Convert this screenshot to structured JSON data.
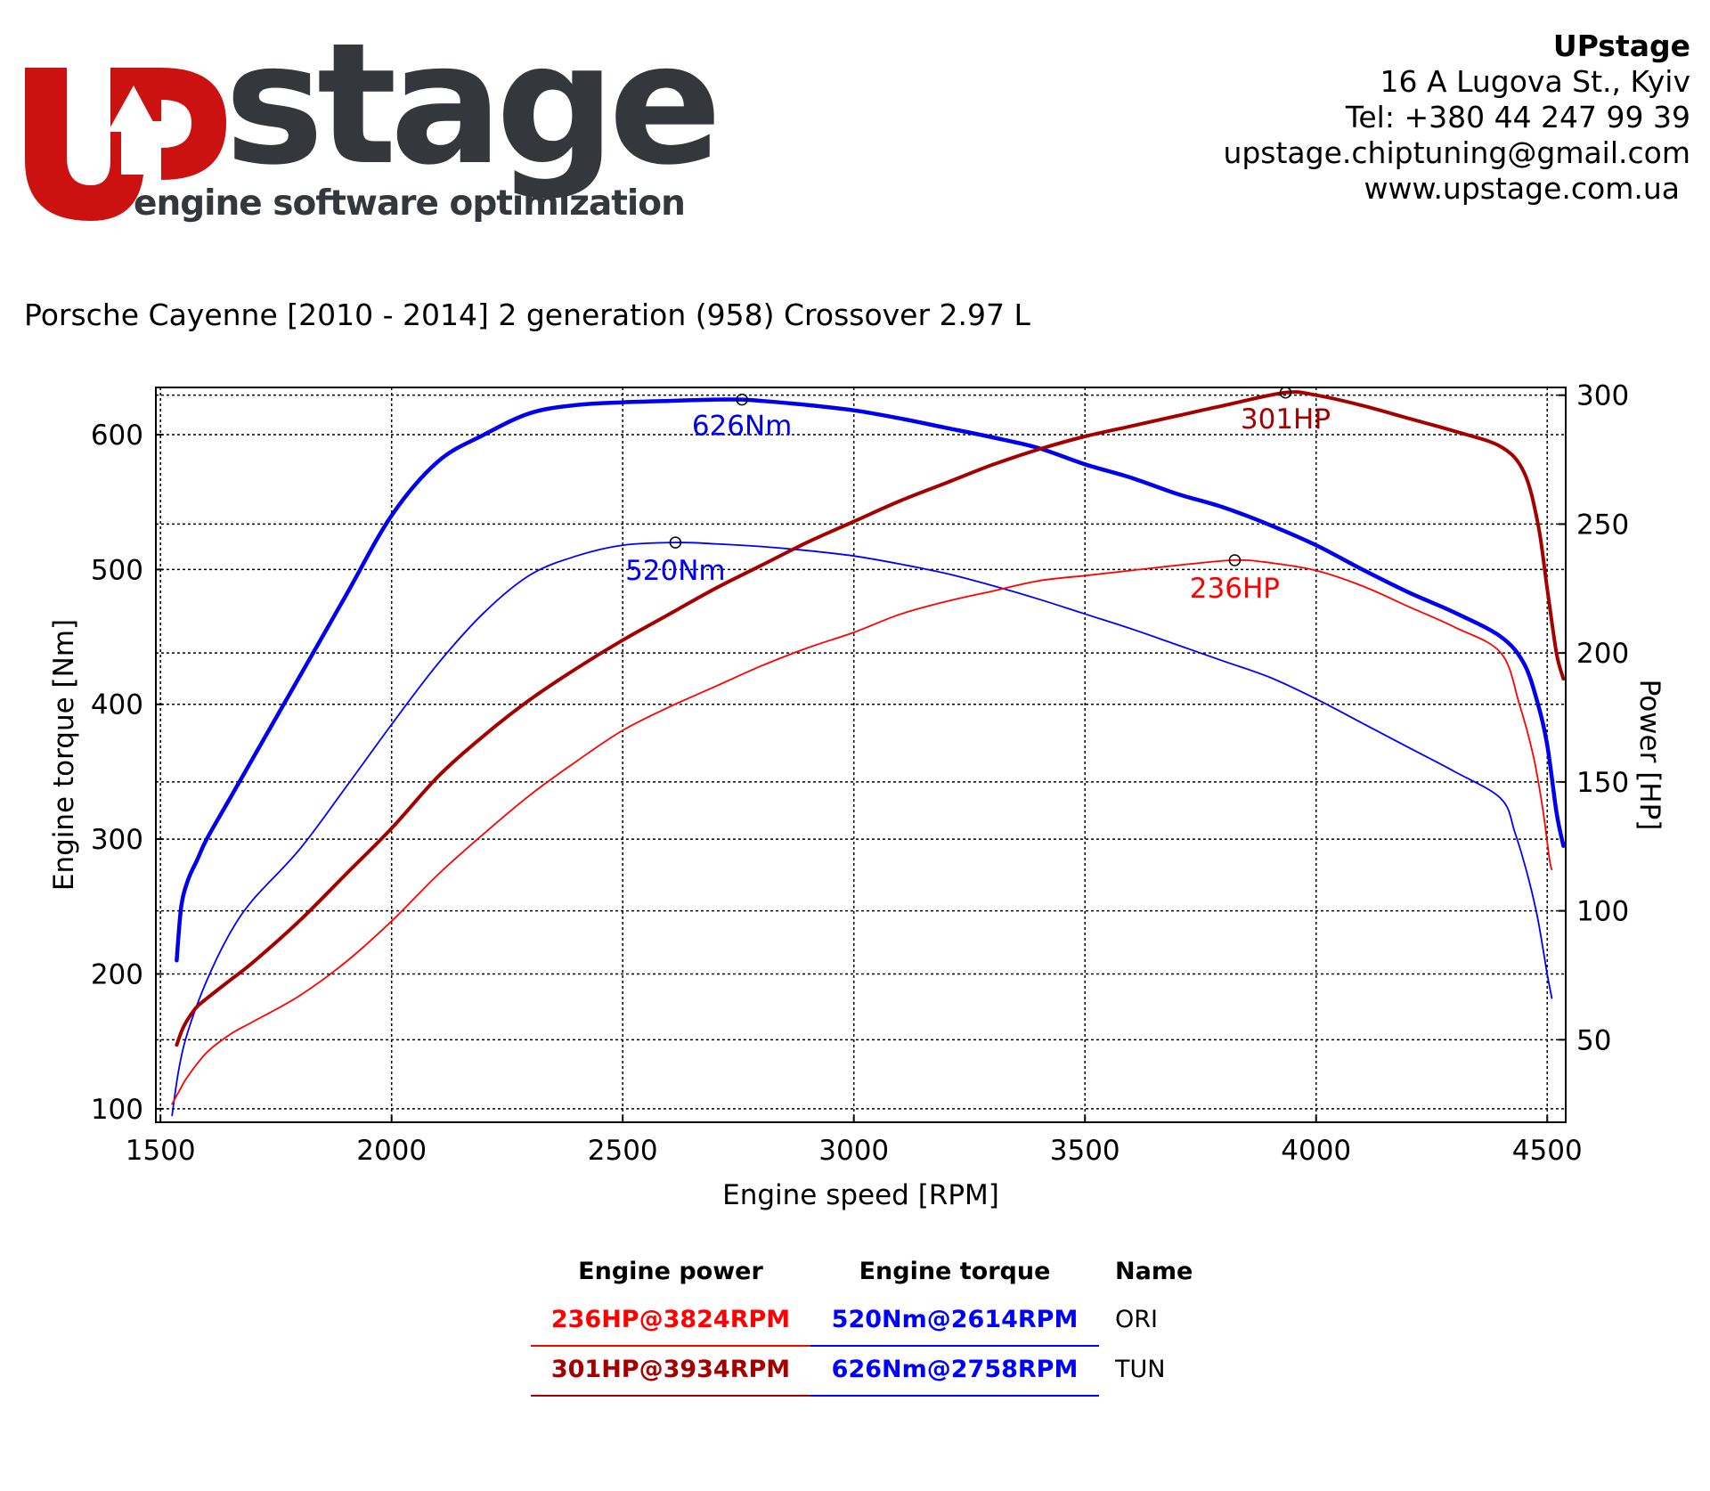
{
  "logo": {
    "word": "stage",
    "tagline": "engine software optimization",
    "colors": {
      "red": "#cc1111",
      "dark": "#34383c"
    }
  },
  "contact": {
    "company": "UPstage",
    "address": "16 A Lugova St., Kyiv",
    "phone": "Tel: +380 44 247 99 39",
    "email": "upstage.chiptuning@gmail.com",
    "web": "www.upstage.com.ua"
  },
  "vehicle": "Porsche Cayenne [2010 - 2014] 2 generation (958) Crossover 2.97 L",
  "colors": {
    "ori_power": "#ff0000",
    "tun_power": "#a50000",
    "ori_torque": "#0000ff",
    "tun_torque": "#0000ee"
  },
  "chart_data": {
    "type": "line",
    "xlabel": "Engine speed [RPM]",
    "ylabel_left": "Engine torque [Nm]",
    "ylabel_right": "Power [HP]",
    "xlim": [
      1490,
      4540
    ],
    "ylim_left": [
      90,
      635
    ],
    "ylim_right": [
      18,
      303
    ],
    "xticks": [
      1500,
      2000,
      2500,
      3000,
      3500,
      4000,
      4500
    ],
    "yticks_left": [
      100,
      200,
      300,
      400,
      500,
      600
    ],
    "yticks_right": [
      50,
      100,
      150,
      200,
      250,
      300
    ],
    "grid": true,
    "series": [
      {
        "key": "tun_torque",
        "axis": "left",
        "label": "626Nm",
        "peak": [
          2758,
          626
        ],
        "x": [
          1535,
          1545,
          1560,
          1580,
          1600,
          1650,
          1700,
          1800,
          1900,
          2000,
          2100,
          2200,
          2300,
          2400,
          2500,
          2600,
          2700,
          2758,
          2800,
          2900,
          3000,
          3100,
          3200,
          3300,
          3400,
          3500,
          3600,
          3700,
          3800,
          3900,
          4000,
          4100,
          4200,
          4300,
          4400,
          4450,
          4480,
          4500,
          4520,
          4535
        ],
        "y": [
          210,
          250,
          270,
          285,
          300,
          330,
          360,
          420,
          480,
          540,
          580,
          600,
          616,
          622,
          624,
          625,
          626,
          626,
          625,
          622,
          618,
          612,
          605,
          598,
          590,
          578,
          568,
          556,
          546,
          533,
          518,
          500,
          483,
          468,
          450,
          430,
          400,
          370,
          320,
          295
        ]
      },
      {
        "key": "ori_torque",
        "axis": "left",
        "label": "520Nm",
        "peak": [
          2614,
          520
        ],
        "x": [
          1525,
          1540,
          1560,
          1600,
          1650,
          1700,
          1800,
          1900,
          2000,
          2100,
          2200,
          2300,
          2400,
          2500,
          2614,
          2700,
          2800,
          2900,
          3000,
          3100,
          3200,
          3300,
          3400,
          3500,
          3600,
          3700,
          3800,
          3900,
          4000,
          4100,
          4200,
          4300,
          4400,
          4430,
          4460,
          4480,
          4500,
          4510
        ],
        "y": [
          95,
          130,
          158,
          195,
          230,
          255,
          292,
          338,
          385,
          430,
          468,
          496,
          510,
          518,
          520,
          519,
          517,
          514,
          510,
          504,
          497,
          488,
          478,
          467,
          456,
          444,
          432,
          420,
          404,
          386,
          368,
          350,
          330,
          305,
          270,
          240,
          200,
          182
        ]
      },
      {
        "key": "tun_power",
        "axis": "right",
        "label": "301HP",
        "peak": [
          3934,
          301
        ],
        "x": [
          1535,
          1550,
          1575,
          1600,
          1650,
          1700,
          1800,
          1900,
          2000,
          2100,
          2200,
          2300,
          2400,
          2500,
          2600,
          2700,
          2800,
          2900,
          3000,
          3100,
          3200,
          3300,
          3400,
          3500,
          3600,
          3700,
          3800,
          3934,
          4000,
          4100,
          4200,
          4300,
          4400,
          4450,
          4480,
          4500,
          4520,
          4535
        ],
        "y": [
          48,
          55,
          62,
          66,
          73,
          80,
          96,
          114,
          132,
          152,
          168,
          182,
          194,
          205,
          215,
          225,
          234,
          243,
          251,
          259,
          266,
          273,
          279,
          284,
          288,
          292,
          296,
          301,
          300,
          296,
          291,
          286,
          280,
          270,
          250,
          225,
          200,
          190
        ]
      },
      {
        "key": "ori_power",
        "axis": "right",
        "label": "236HP",
        "peak": [
          3824,
          236
        ],
        "x": [
          1525,
          1540,
          1560,
          1600,
          1650,
          1700,
          1800,
          1900,
          2000,
          2100,
          2200,
          2300,
          2400,
          2500,
          2600,
          2700,
          2800,
          2900,
          3000,
          3100,
          3200,
          3300,
          3400,
          3500,
          3600,
          3700,
          3824,
          3900,
          4000,
          4100,
          4200,
          4300,
          4400,
          4440,
          4470,
          4490,
          4505,
          4510
        ],
        "y": [
          25,
          30,
          36,
          45,
          52,
          57,
          67,
          80,
          96,
          114,
          130,
          145,
          158,
          170,
          179,
          187,
          195,
          202,
          208,
          215,
          220,
          224,
          228,
          230,
          232,
          234,
          236,
          235,
          232,
          226,
          218,
          210,
          200,
          180,
          160,
          140,
          120,
          116
        ]
      }
    ]
  },
  "results": {
    "headers": {
      "power": "Engine power",
      "torque": "Engine torque",
      "name": "Name"
    },
    "rows": [
      {
        "power": "236HP@3824RPM",
        "torque": "520Nm@2614RPM",
        "name": "ORI"
      },
      {
        "power": "301HP@3934RPM",
        "torque": "626Nm@2758RPM",
        "name": "TUN"
      }
    ]
  }
}
